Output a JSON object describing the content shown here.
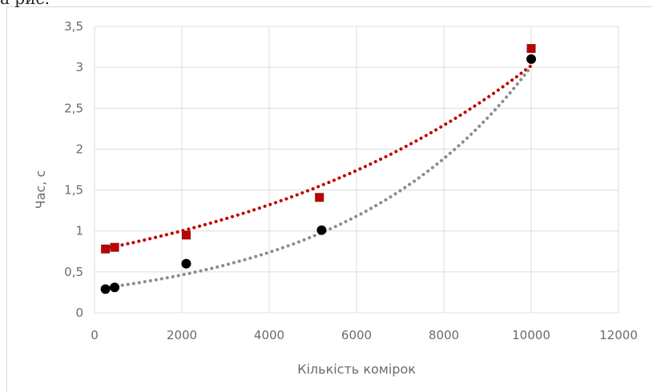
{
  "page_fragment": "а рис.",
  "chart_data": {
    "type": "scatter",
    "xlabel": "Кількість комірок",
    "ylabel": "Час, с",
    "xlim": [
      0,
      12000
    ],
    "ylim": [
      0,
      3.5
    ],
    "x_ticks": [
      0,
      2000,
      4000,
      6000,
      8000,
      10000,
      12000
    ],
    "y_ticks": [
      0,
      0.5,
      1,
      1.5,
      2,
      2.5,
      3,
      3.5
    ],
    "x_tick_labels": [
      "0",
      "2000",
      "4000",
      "6000",
      "8000",
      "10000",
      "12000"
    ],
    "y_tick_labels": [
      "0",
      "0,5",
      "1",
      "1,5",
      "2",
      "2,5",
      "3",
      "3,5"
    ],
    "grid": true,
    "legend": "none",
    "series": [
      {
        "marker": "square",
        "color": "#c00000",
        "trendline": "exponential",
        "trend_coeffs": [
          0.76,
          0.000138
        ],
        "points": [
          [
            250,
            0.78
          ],
          [
            460,
            0.8
          ],
          [
            2100,
            0.95
          ],
          [
            5150,
            1.41
          ],
          [
            10000,
            3.23
          ]
        ]
      },
      {
        "marker": "circle",
        "color": "#000000",
        "trend_color": "#8c8c8c",
        "trendline": "exponential",
        "trend_coeffs": [
          0.29,
          0.000234
        ],
        "points": [
          [
            250,
            0.29
          ],
          [
            460,
            0.31
          ],
          [
            2100,
            0.6
          ],
          [
            5200,
            1.01
          ],
          [
            10000,
            3.1
          ]
        ]
      }
    ]
  }
}
